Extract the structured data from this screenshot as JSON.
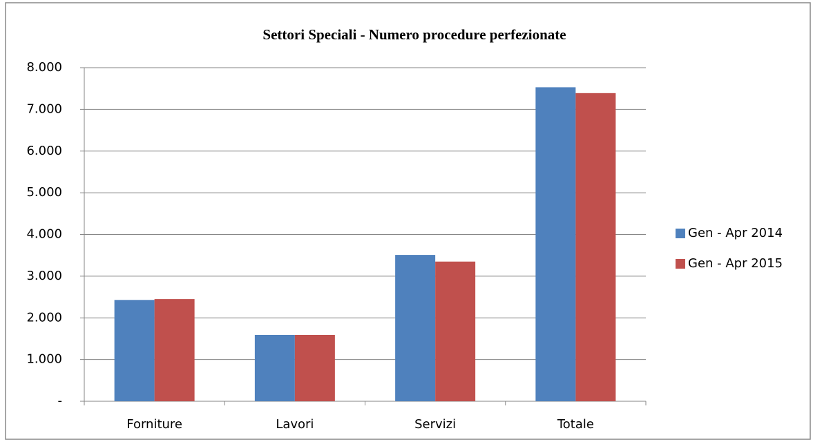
{
  "chart_data": {
    "type": "bar",
    "title": "Settori Speciali - Numero procedure perfezionate",
    "categories": [
      "Forniture",
      "Lavori",
      "Servizi",
      "Totale"
    ],
    "series": [
      {
        "name": "Gen - Apr 2014",
        "color": "#4f81bd",
        "values": [
          2430,
          1590,
          3510,
          7530
        ]
      },
      {
        "name": "Gen - Apr 2015",
        "color": "#c0504d",
        "values": [
          2450,
          1590,
          3350,
          7390
        ]
      }
    ],
    "ylim": [
      0,
      8000
    ],
    "yticks": [
      {
        "value": 0,
        "label": "-"
      },
      {
        "value": 1000,
        "label": "1.000"
      },
      {
        "value": 2000,
        "label": "2.000"
      },
      {
        "value": 3000,
        "label": "3.000"
      },
      {
        "value": 4000,
        "label": "4.000"
      },
      {
        "value": 5000,
        "label": "5.000"
      },
      {
        "value": 6000,
        "label": "6.000"
      },
      {
        "value": 7000,
        "label": "7.000"
      },
      {
        "value": 8000,
        "label": "8.000"
      }
    ],
    "grid": true,
    "legend": "right"
  }
}
